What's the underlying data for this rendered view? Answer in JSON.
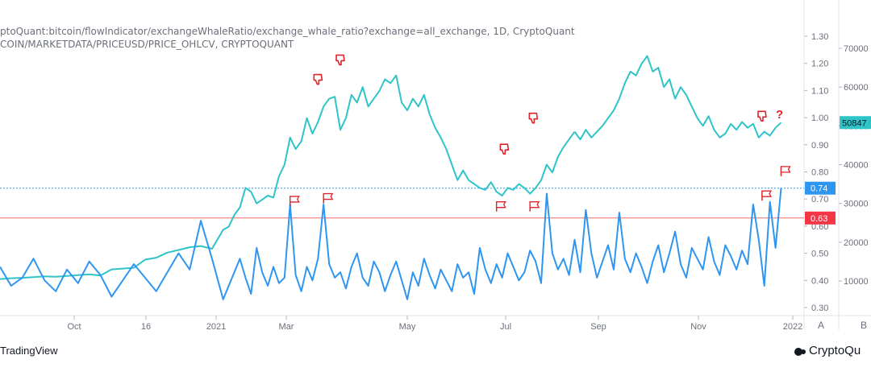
{
  "header": {
    "line1": "ptoQuant:bitcoin/flowIndicator/exchangeWhaleRatio/exchange_whale_ratio?exchange=all_exchange, 1D, CryptoQuant",
    "line2": "COIN/MARKETDATA/PRICEUSD/PRICE_OHLCV, CRYPTOQUANT"
  },
  "footer": {
    "left": "TradingView",
    "right": "CryptoQu"
  },
  "colors": {
    "price": "#2ec4c8",
    "ratio": "#2e96f0",
    "hline_red": "#f26b6b",
    "hline_blue": "#2e96f0",
    "marker": "#e0222a",
    "badge_teal": "#2ec4c8",
    "badge_blue": "#2e96f0",
    "badge_red": "#f23645"
  },
  "chart_data": {
    "type": "line",
    "x_tick_labels": [
      "Oct",
      "16",
      "2021",
      "Mar",
      "May",
      "Jul",
      "Sep",
      "Nov",
      "2022"
    ],
    "y_left_ticks": [
      "1.30",
      "1.20",
      "1.10",
      "1.00",
      "0.90",
      "0.80",
      "0.70",
      "0.60",
      "0.50",
      "0.40",
      "0.30"
    ],
    "y_right_ticks": [
      "70000",
      "60000",
      "50000",
      "40000",
      "30000",
      "20000",
      "10000"
    ],
    "axis_buttons": [
      "A",
      "B"
    ],
    "ylim_ratio": [
      0.285,
      1.345
    ],
    "ylim_price": [
      -6500,
      75500
    ],
    "hlines": [
      {
        "value": 0.74,
        "label": "0.74",
        "style": "dotted",
        "color": "blue"
      },
      {
        "value": 0.63,
        "label": "0.63",
        "style": "solid",
        "color": "red"
      }
    ],
    "price_badge": "50847",
    "question_mark": "?",
    "series": [
      {
        "axis": "right",
        "x": [
          0,
          10,
          20,
          30,
          40,
          50,
          60,
          70,
          80,
          90,
          100,
          110,
          120,
          130,
          140,
          150,
          160,
          170,
          180,
          190,
          200,
          205,
          210,
          215,
          220,
          225,
          230,
          235,
          240,
          245,
          250,
          255,
          260,
          265,
          270,
          275,
          280,
          285,
          290,
          295,
          300,
          305,
          310,
          315,
          320,
          325,
          330,
          335,
          340,
          345,
          350,
          355,
          360,
          365,
          370,
          375,
          380,
          385,
          390,
          395,
          400,
          405,
          410,
          415,
          420,
          425,
          430,
          435,
          440,
          445,
          450,
          455,
          460,
          465,
          470,
          475,
          480,
          485,
          490,
          495,
          500,
          505,
          510,
          515
        ],
        "values": [
          10500,
          10700,
          10800,
          11000,
          11200,
          11100,
          11300,
          11500,
          11700,
          11400,
          13000,
          13200,
          13400,
          15500,
          16000,
          17300,
          18000,
          18700,
          19000,
          18300,
          23200,
          24000,
          27000,
          29000,
          34000,
          33000,
          30000,
          31000,
          32000,
          31500,
          37000,
          40000,
          47000,
          44000,
          46000,
          52000,
          48000,
          51000,
          55000,
          57000,
          57500,
          49000,
          52000,
          58000,
          56000,
          60000,
          55000,
          57000,
          59000,
          62000,
          61000,
          63000,
          56000,
          54000,
          57000,
          55000,
          58000,
          53000,
          49500,
          47000,
          44000,
          40000,
          36000,
          38500,
          36000,
          35000,
          34000,
          33500,
          35500,
          33000,
          32000,
          34000,
          33500,
          35000,
          34000,
          32500,
          34000,
          36000,
          40000,
          38000,
          42000,
          44500,
          46500,
          48500
        ]
      },
      {
        "axis": "right",
        "x": [
          515,
          520,
          525,
          530,
          535,
          540,
          545,
          550,
          555,
          560,
          565,
          570,
          575,
          580,
          585,
          590,
          595,
          600,
          605,
          610,
          615,
          620,
          625,
          630,
          635,
          640,
          645,
          650,
          655,
          660,
          665,
          670,
          675,
          680,
          685,
          690,
          695,
          700
        ],
        "values": [
          48500,
          46500,
          49000,
          47000,
          48500,
          50000,
          52000,
          54000,
          57000,
          61000,
          64000,
          63000,
          66000,
          68000,
          64000,
          65000,
          60000,
          62000,
          57000,
          60000,
          58000,
          55000,
          52000,
          50000,
          52500,
          49000,
          47000,
          48000,
          50500,
          49000,
          51000,
          49500,
          50500,
          47000,
          48500,
          47500,
          49500,
          50847
        ]
      },
      {
        "axis": "left",
        "x": [
          0,
          10,
          20,
          30,
          40,
          50,
          60,
          70,
          80,
          90,
          100,
          110,
          120,
          130,
          140,
          150,
          160,
          170,
          180,
          190,
          200,
          205,
          210,
          215,
          220,
          225,
          230,
          235,
          240,
          245,
          250,
          255,
          260,
          265,
          270,
          275,
          280,
          285,
          290,
          295,
          300,
          305,
          310,
          315,
          320,
          325,
          330,
          335,
          340,
          345,
          350,
          355,
          360,
          365,
          370,
          375,
          380,
          385,
          390,
          395,
          400,
          405,
          410,
          415,
          420,
          425,
          430,
          435,
          440,
          445,
          450,
          455,
          460,
          465,
          470,
          475,
          480,
          485,
          490,
          495,
          500,
          505,
          510,
          515,
          520,
          525,
          530,
          535,
          540,
          545,
          550,
          555,
          560,
          565,
          570,
          575,
          580,
          585,
          590,
          595,
          600,
          605,
          610,
          615,
          620,
          625,
          630,
          635,
          640,
          645,
          650,
          655,
          660,
          665,
          670,
          675,
          680,
          685,
          690,
          695,
          700
        ],
        "values": [
          0.45,
          0.38,
          0.41,
          0.48,
          0.4,
          0.36,
          0.44,
          0.39,
          0.47,
          0.42,
          0.34,
          0.4,
          0.46,
          0.41,
          0.36,
          0.43,
          0.5,
          0.44,
          0.62,
          0.48,
          0.33,
          0.38,
          0.43,
          0.48,
          0.41,
          0.35,
          0.52,
          0.43,
          0.38,
          0.45,
          0.39,
          0.41,
          0.68,
          0.42,
          0.36,
          0.45,
          0.4,
          0.48,
          0.68,
          0.46,
          0.41,
          0.43,
          0.37,
          0.45,
          0.5,
          0.41,
          0.38,
          0.47,
          0.43,
          0.36,
          0.42,
          0.47,
          0.4,
          0.33,
          0.43,
          0.38,
          0.48,
          0.42,
          0.37,
          0.44,
          0.4,
          0.36,
          0.46,
          0.41,
          0.43,
          0.35,
          0.52,
          0.44,
          0.39,
          0.46,
          0.41,
          0.5,
          0.45,
          0.4,
          0.43,
          0.51,
          0.47,
          0.39,
          0.72,
          0.5,
          0.44,
          0.48,
          0.42,
          0.55,
          0.43,
          0.66,
          0.5,
          0.41,
          0.47,
          0.53,
          0.44,
          0.65,
          0.48,
          0.43,
          0.5,
          0.45,
          0.39,
          0.47,
          0.53,
          0.43,
          0.5,
          0.58,
          0.46,
          0.41,
          0.52,
          0.48,
          0.44,
          0.56,
          0.47,
          0.42,
          0.53,
          0.49,
          0.44,
          0.51,
          0.46,
          0.68,
          0.55,
          0.38,
          0.69,
          0.52,
          0.74
        ]
      }
    ],
    "annotations": [
      {
        "kind": "thumbs-down",
        "x": 285,
        "price": 62000
      },
      {
        "kind": "thumbs-down",
        "x": 305,
        "price": 67000
      },
      {
        "kind": "thumbs-down",
        "x": 452,
        "price": 44000
      },
      {
        "kind": "thumbs-down",
        "x": 478,
        "price": 52000
      },
      {
        "kind": "thumbs-down",
        "x": 683,
        "price": 52500
      },
      {
        "kind": "flag",
        "x": 260,
        "ratio": 0.68
      },
      {
        "kind": "flag",
        "x": 290,
        "ratio": 0.69
      },
      {
        "kind": "flag",
        "x": 445,
        "ratio": 0.66
      },
      {
        "kind": "flag",
        "x": 475,
        "ratio": 0.66
      },
      {
        "kind": "flag",
        "x": 683,
        "ratio": 0.7
      },
      {
        "kind": "flag",
        "x": 700,
        "ratio": 0.79
      }
    ]
  }
}
